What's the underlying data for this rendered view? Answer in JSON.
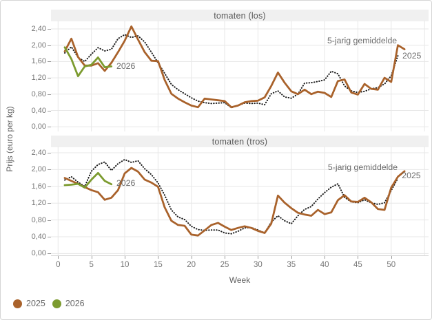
{
  "figure": {
    "y_axis_label": "Prijs (euro per kg)",
    "x_axis_label": "Week",
    "y_ticks": [
      "2,40",
      "2,00",
      "1,60",
      "1,20",
      "0,80",
      "0,40",
      "0,00"
    ],
    "y_tick_values": [
      2.4,
      2.0,
      1.6,
      1.2,
      0.8,
      0.4,
      0.0
    ],
    "x_ticks": [
      0,
      5,
      10,
      15,
      20,
      25,
      30,
      35,
      40,
      45,
      50
    ],
    "grid_weeks": [
      0,
      5,
      10,
      15,
      20,
      25,
      30,
      35,
      40,
      45,
      50,
      55
    ],
    "colors": {
      "series_2025": "#a9622b",
      "series_2026": "#7c9b2f",
      "series_avg": "#1c1c1c",
      "grid": "#e7e7e7",
      "strip_bg": "#f0f0f0",
      "tick_text": "#757575"
    },
    "legend": [
      {
        "label": "2025",
        "color": "#a9622b"
      },
      {
        "label": "2026",
        "color": "#7c9b2f"
      }
    ]
  },
  "chart_data": [
    {
      "type": "line",
      "title": "tomaten (los)",
      "xlabel": "Week",
      "ylabel": "Prijs (euro per kg)",
      "ylim": [
        0,
        2.6
      ],
      "x_start_week": 1,
      "series": [
        {
          "name": "5-jarig gemiddelde",
          "style": "dotted",
          "values": [
            1.81,
            1.96,
            1.7,
            1.6,
            1.78,
            1.94,
            1.86,
            1.9,
            2.16,
            2.26,
            2.19,
            2.23,
            2.08,
            1.83,
            1.57,
            1.31,
            1.04,
            0.91,
            0.81,
            0.71,
            0.63,
            0.59,
            0.57,
            0.58,
            0.59,
            0.47,
            0.52,
            0.58,
            0.57,
            0.58,
            0.54,
            0.81,
            0.88,
            0.73,
            0.7,
            0.8,
            1.07,
            1.08,
            1.11,
            1.15,
            1.36,
            1.3,
            1.0,
            0.88,
            0.84,
            0.87,
            0.93,
            0.96,
            1.05,
            1.25,
            1.74
          ]
        },
        {
          "name": "2025",
          "style": "solid",
          "color_key": "series_2025",
          "values": [
            1.85,
            2.16,
            1.71,
            1.5,
            1.5,
            1.56,
            1.37,
            1.57,
            1.83,
            2.11,
            2.46,
            2.14,
            1.83,
            1.62,
            1.61,
            1.15,
            0.81,
            0.69,
            0.6,
            0.52,
            0.48,
            0.69,
            0.67,
            0.65,
            0.63,
            0.48,
            0.52,
            0.6,
            0.63,
            0.64,
            0.72,
            1.0,
            1.33,
            1.08,
            0.87,
            0.8,
            0.91,
            0.8,
            0.86,
            0.83,
            0.73,
            1.12,
            1.16,
            0.84,
            0.79,
            1.05,
            0.93,
            0.91,
            1.2,
            1.1,
            2.0,
            1.9
          ]
        },
        {
          "name": "2026",
          "style": "solid",
          "color_key": "series_2026",
          "values": [
            1.95,
            1.66,
            1.24,
            1.48,
            1.52,
            1.7,
            1.46,
            1.48
          ]
        }
      ],
      "annotations": [
        {
          "text": "2026",
          "week": 8.76,
          "value": 1.49
        },
        {
          "text": "5-jarig gemiddelde",
          "week": 40.4,
          "value": 2.12
        },
        {
          "text": "2025",
          "week": 51.68,
          "value": 1.74
        }
      ]
    },
    {
      "type": "line",
      "title": "tomaten (tros)",
      "xlabel": "Week",
      "ylabel": "Prijs (euro per kg)",
      "ylim": [
        0,
        2.6
      ],
      "x_start_week": 1,
      "series": [
        {
          "name": "5-jarig gemiddelde",
          "style": "dotted",
          "values": [
            1.75,
            1.83,
            1.7,
            1.6,
            1.96,
            2.12,
            2.18,
            1.98,
            2.14,
            2.24,
            2.17,
            2.21,
            2.02,
            1.88,
            1.68,
            1.39,
            1.04,
            0.87,
            0.81,
            0.65,
            0.57,
            0.55,
            0.56,
            0.56,
            0.49,
            0.47,
            0.53,
            0.61,
            0.62,
            0.56,
            0.49,
            0.75,
            0.9,
            0.78,
            0.71,
            0.9,
            1.05,
            1.12,
            1.3,
            1.45,
            1.58,
            1.66,
            1.34,
            1.23,
            1.21,
            1.28,
            1.21,
            1.17,
            1.21,
            1.5,
            1.79
          ]
        },
        {
          "name": "2025",
          "style": "solid",
          "color_key": "series_2025",
          "values": [
            1.8,
            1.73,
            1.66,
            1.58,
            1.51,
            1.46,
            1.28,
            1.33,
            1.51,
            1.91,
            2.04,
            1.95,
            1.76,
            1.69,
            1.59,
            1.1,
            0.78,
            0.68,
            0.66,
            0.45,
            0.43,
            0.55,
            0.68,
            0.73,
            0.64,
            0.56,
            0.61,
            0.65,
            0.61,
            0.54,
            0.49,
            0.71,
            1.38,
            1.21,
            1.08,
            0.97,
            0.93,
            0.9,
            1.04,
            0.94,
            0.98,
            1.27,
            1.39,
            1.24,
            1.23,
            1.33,
            1.22,
            1.06,
            1.04,
            1.57,
            1.83,
            1.96
          ]
        },
        {
          "name": "2026",
          "style": "solid",
          "color_key": "series_2026",
          "values": [
            1.63,
            1.64,
            1.66,
            1.57,
            1.76,
            1.92,
            1.73,
            1.65
          ]
        }
      ],
      "annotations": [
        {
          "text": "2026",
          "week": 8.76,
          "value": 1.68
        },
        {
          "text": "5-jarig gemiddelde",
          "week": 40.5,
          "value": 2.05
        },
        {
          "text": "2025",
          "week": 51.6,
          "value": 1.86
        }
      ]
    }
  ]
}
